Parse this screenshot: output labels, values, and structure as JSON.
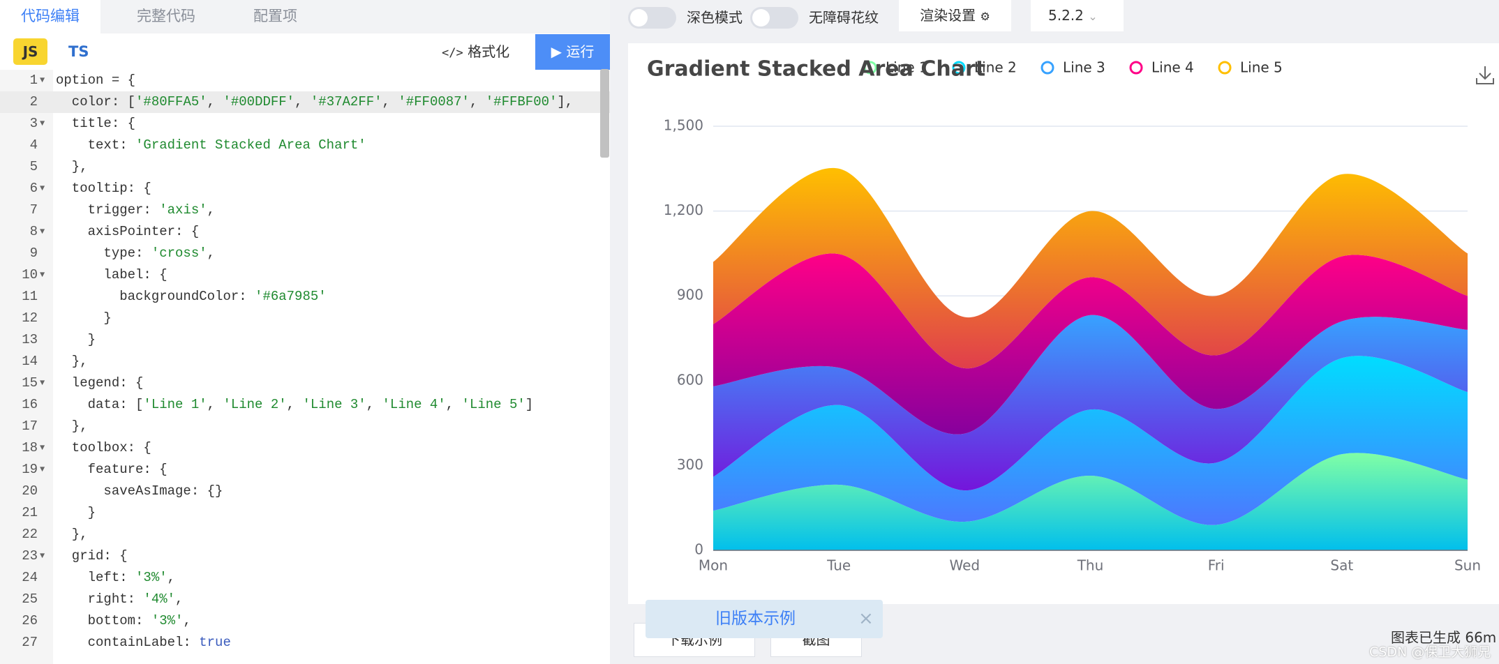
{
  "editor_tabs": [
    "代码编辑",
    "完整代码",
    "配置项"
  ],
  "languages": [
    "JS",
    "TS"
  ],
  "format_button": "格式化",
  "run_button": "运行",
  "code": {
    "active_line": 2,
    "lines": [
      {
        "n": 1,
        "text": "option = {",
        "fold": true
      },
      {
        "n": 2,
        "text": "  color: ['#80FFA5', '#00DDFF', '#37A2FF', '#FF0087', '#FFBF00'],"
      },
      {
        "n": 3,
        "text": "  title: {",
        "fold": true
      },
      {
        "n": 4,
        "text": "    text: 'Gradient Stacked Area Chart'"
      },
      {
        "n": 5,
        "text": "  },"
      },
      {
        "n": 6,
        "text": "  tooltip: {",
        "fold": true
      },
      {
        "n": 7,
        "text": "    trigger: 'axis',"
      },
      {
        "n": 8,
        "text": "    axisPointer: {",
        "fold": true
      },
      {
        "n": 9,
        "text": "      type: 'cross',"
      },
      {
        "n": 10,
        "text": "      label: {",
        "fold": true
      },
      {
        "n": 11,
        "text": "        backgroundColor: '#6a7985'"
      },
      {
        "n": 12,
        "text": "      }"
      },
      {
        "n": 13,
        "text": "    }"
      },
      {
        "n": 14,
        "text": "  },"
      },
      {
        "n": 15,
        "text": "  legend: {",
        "fold": true
      },
      {
        "n": 16,
        "text": "    data: ['Line 1', 'Line 2', 'Line 3', 'Line 4', 'Line 5']"
      },
      {
        "n": 17,
        "text": "  },"
      },
      {
        "n": 18,
        "text": "  toolbox: {",
        "fold": true
      },
      {
        "n": 19,
        "text": "    feature: {",
        "fold": true
      },
      {
        "n": 20,
        "text": "      saveAsImage: {}"
      },
      {
        "n": 21,
        "text": "    }"
      },
      {
        "n": 22,
        "text": "  },"
      },
      {
        "n": 23,
        "text": "  grid: {",
        "fold": true
      },
      {
        "n": 24,
        "text": "    left: '3%',"
      },
      {
        "n": 25,
        "text": "    right: '4%',"
      },
      {
        "n": 26,
        "text": "    bottom: '3%',"
      },
      {
        "n": 27,
        "text": "    containLabel: true"
      }
    ]
  },
  "toolbar": {
    "dark_mode": "深色模式",
    "aria_pattern": "无障碍花纹",
    "render_settings": "渲染设置",
    "version": "5.2.2"
  },
  "chart_data": {
    "type": "area",
    "stacked": true,
    "smooth": true,
    "title": "Gradient Stacked Area Chart",
    "categories": [
      "Mon",
      "Tue",
      "Wed",
      "Thu",
      "Fri",
      "Sat",
      "Sun"
    ],
    "series": [
      {
        "name": "Line 1",
        "color": "#80FFA5",
        "gradient_end": "#01BFEC",
        "values": [
          140,
          232,
          101,
          264,
          90,
          340,
          250
        ]
      },
      {
        "name": "Line 2",
        "color": "#00DDFF",
        "gradient_end": "#4D77FF",
        "values": [
          120,
          282,
          111,
          234,
          220,
          340,
          310
        ]
      },
      {
        "name": "Line 3",
        "color": "#37A2FF",
        "gradient_end": "#7415DB",
        "values": [
          320,
          132,
          201,
          334,
          190,
          130,
          220
        ]
      },
      {
        "name": "Line 4",
        "color": "#FF0087",
        "gradient_end": "#87009D",
        "values": [
          220,
          402,
          231,
          134,
          190,
          230,
          120
        ]
      },
      {
        "name": "Line 5",
        "color": "#FFBF00",
        "gradient_end": "#E03E4C",
        "values": [
          220,
          302,
          181,
          234,
          210,
          290,
          150
        ]
      }
    ],
    "ylim": [
      0,
      1500
    ],
    "yticks": [
      0,
      300,
      600,
      900,
      {
        "value": 1200,
        "label": "1,200"
      },
      {
        "value": 1500,
        "label": "1,500"
      }
    ],
    "grid": true
  },
  "bottom": {
    "old_examples": "旧版本示例",
    "download": "下载示例",
    "screenshot": "截图",
    "status": "图表已生成 66m"
  },
  "watermark": "CSDN @保卫大狮兄"
}
